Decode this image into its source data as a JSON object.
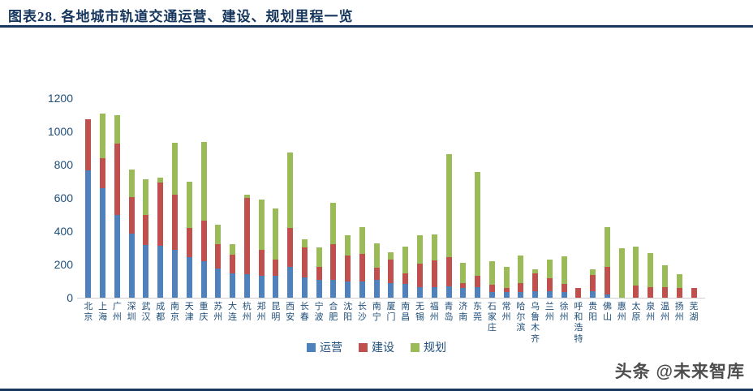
{
  "header": {
    "title": "图表28.  各地城市轨道交通运营、建设、规划里程一览"
  },
  "watermark": {
    "text": "头条 @未来智库"
  },
  "chart_data": {
    "type": "bar",
    "stacked": true,
    "grid": false,
    "legend_position": "bottom",
    "ylim": [
      0,
      1200
    ],
    "yticks": [
      0,
      200,
      400,
      600,
      800,
      1000,
      1200
    ],
    "categories": [
      "北京",
      "上海",
      "广州",
      "深圳",
      "武汉",
      "成都",
      "南京",
      "天津",
      "重庆",
      "苏州",
      "大连",
      "杭州",
      "郑州",
      "昆明",
      "西安",
      "长春",
      "宁波",
      "合肥",
      "沈阳",
      "长沙",
      "南宁",
      "厦门",
      "南昌",
      "无锡",
      "福州",
      "青岛",
      "济南",
      "东莞",
      "石家庄",
      "常州",
      "哈尔滨",
      "乌鲁木齐",
      "兰州",
      "徐州",
      "呼和浩特",
      "贵阳",
      "佛山",
      "惠州",
      "太原",
      "泉州",
      "温州",
      "扬州",
      "芜湖"
    ],
    "series": [
      {
        "name": "运营",
        "color": "#4F81BD",
        "values": [
          765,
          660,
          500,
          385,
          317,
          312,
          288,
          244,
          220,
          178,
          146,
          140,
          134,
          130,
          187,
          122,
          106,
          106,
          98,
          98,
          106,
          90,
          85,
          65,
          65,
          68,
          57,
          65,
          35,
          36,
          33,
          40,
          40,
          36,
          0,
          40,
          20,
          0,
          0,
          0,
          0,
          0,
          0
        ]
      },
      {
        "name": "建设",
        "color": "#C0504D",
        "values": [
          310,
          178,
          425,
          218,
          179,
          383,
          330,
          176,
          243,
          146,
          114,
          460,
          154,
          100,
          233,
          180,
          81,
          214,
          154,
          167,
          73,
          141,
          61,
          140,
          158,
          176,
          33,
          65,
          45,
          21,
          55,
          105,
          75,
          45,
          60,
          97,
          167,
          0,
          73,
          65,
          62,
          57,
          57
        ]
      },
      {
        "name": "规划",
        "color": "#9BBB59",
        "values": [
          0,
          271,
          175,
          170,
          215,
          29,
          315,
          276,
          475,
          114,
          62,
          20,
          302,
          307,
          455,
          50,
          117,
          249,
          126,
          158,
          146,
          41,
          163,
          170,
          159,
          618,
          122,
          626,
          140,
          130,
          164,
          25,
          113,
          166,
          0,
          33,
          236,
          300,
          236,
          203,
          133,
          86,
          0
        ]
      }
    ]
  }
}
